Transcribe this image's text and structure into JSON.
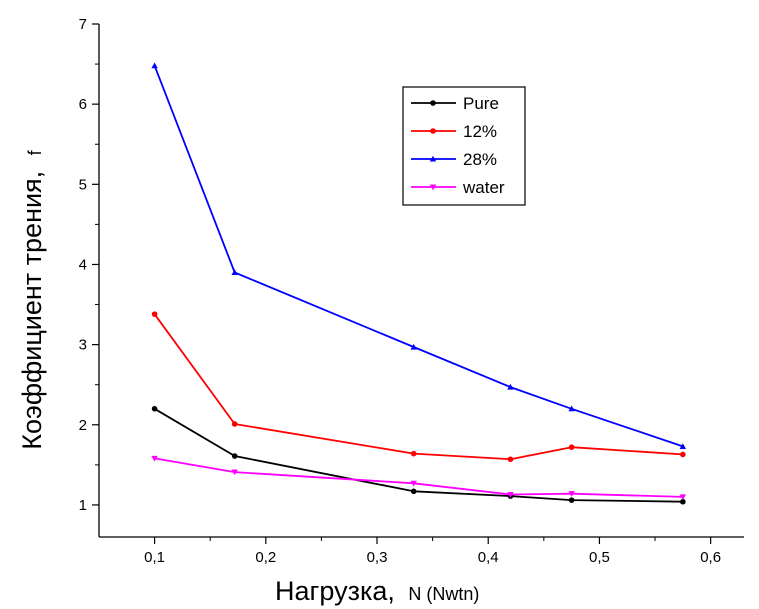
{
  "chart_data": {
    "type": "line",
    "xlabel_main": "Нагрузка,",
    "xlabel_unit": "N (Nwtn)",
    "ylabel_main": "Коэффициент трения,",
    "ylabel_unit": "f",
    "xlim": [
      0.05,
      0.63
    ],
    "ylim": [
      0.6,
      7
    ],
    "x_ticks": [
      {
        "value": 0.1,
        "label": "0,1"
      },
      {
        "value": 0.2,
        "label": "0,2"
      },
      {
        "value": 0.3,
        "label": "0,3"
      },
      {
        "value": 0.4,
        "label": "0,4"
      },
      {
        "value": 0.5,
        "label": "0,5"
      },
      {
        "value": 0.6,
        "label": "0,6"
      }
    ],
    "y_ticks": [
      {
        "value": 1,
        "label": "1"
      },
      {
        "value": 2,
        "label": "2"
      },
      {
        "value": 3,
        "label": "3"
      },
      {
        "value": 4,
        "label": "4"
      },
      {
        "value": 5,
        "label": "5"
      },
      {
        "value": 6,
        "label": "6"
      },
      {
        "value": 7,
        "label": "7"
      }
    ],
    "legend_position": "top-right",
    "series": [
      {
        "name": "Pure",
        "color": "#000000",
        "marker": "circle",
        "x": [
          0.1,
          0.172,
          0.333,
          0.42,
          0.475,
          0.575
        ],
        "y": [
          2.2,
          1.61,
          1.17,
          1.11,
          1.06,
          1.04
        ]
      },
      {
        "name": "12%",
        "color": "#ff0000",
        "marker": "circle",
        "x": [
          0.1,
          0.172,
          0.333,
          0.42,
          0.475,
          0.575
        ],
        "y": [
          3.38,
          2.01,
          1.64,
          1.57,
          1.72,
          1.63
        ]
      },
      {
        "name": "28%",
        "color": "#0000ff",
        "marker": "triangle-up",
        "x": [
          0.1,
          0.172,
          0.333,
          0.42,
          0.475,
          0.575
        ],
        "y": [
          6.48,
          3.9,
          2.97,
          2.47,
          2.2,
          1.73
        ]
      },
      {
        "name": "water",
        "color": "#ff00ff",
        "marker": "triangle-down",
        "x": [
          0.1,
          0.172,
          0.333,
          0.42,
          0.475,
          0.575
        ],
        "y": [
          1.58,
          1.41,
          1.27,
          1.13,
          1.14,
          1.1
        ]
      }
    ]
  }
}
